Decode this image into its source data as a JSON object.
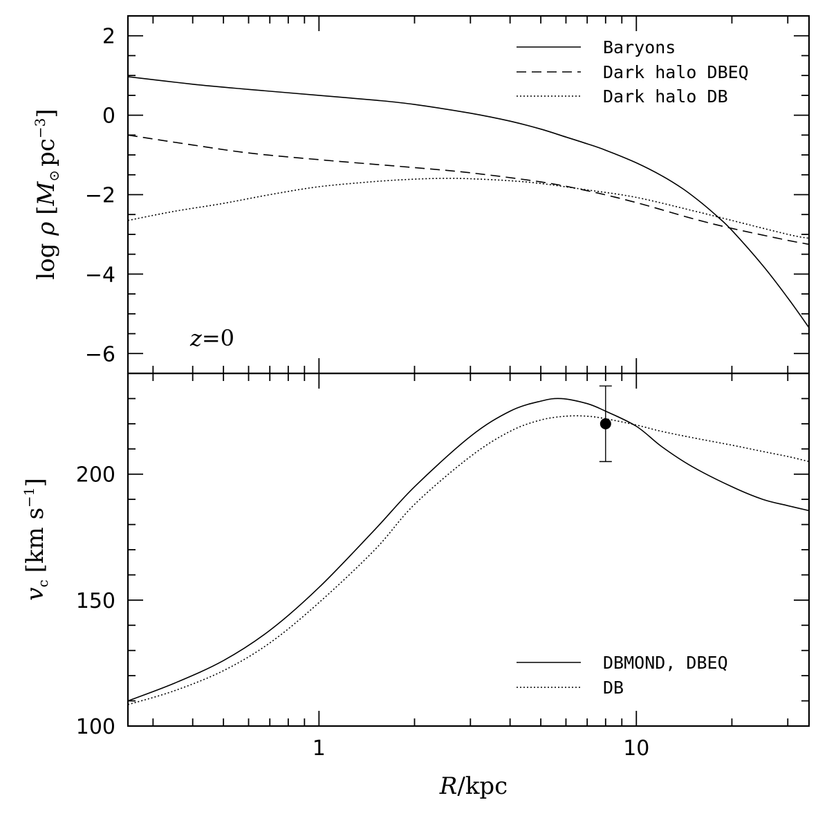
{
  "chart_data": [
    {
      "type": "line",
      "panel": "top",
      "xscale": "log",
      "xlim": [
        0.25,
        35
      ],
      "ylim": [
        -6.5,
        2.5
      ],
      "yticks": [
        -6,
        -4,
        -2,
        0,
        2
      ],
      "ytick_labels": [
        "−6",
        "−4",
        "−2",
        "0",
        "2"
      ],
      "ylabel": {
        "pre": "log ",
        "rho": "ρ",
        "open": "[",
        "M": "M",
        "sun": "⊙",
        "unit": "pc",
        "exp": "−3",
        "close": "]"
      },
      "annotation": {
        "z": "z",
        "eq": "=0"
      },
      "legend_position": "top-right",
      "grid": false,
      "series": [
        {
          "name": "Baryons",
          "style": "solid",
          "x": [
            0.25,
            0.4,
            0.6,
            1,
            1.5,
            2,
            3,
            4,
            5,
            6,
            7,
            8,
            10,
            12,
            14,
            16,
            18,
            20,
            25,
            30,
            35
          ],
          "y": [
            0.97,
            0.78,
            0.65,
            0.5,
            0.38,
            0.27,
            0.05,
            -0.15,
            -0.35,
            -0.55,
            -0.72,
            -0.88,
            -1.2,
            -1.52,
            -1.85,
            -2.2,
            -2.55,
            -2.9,
            -3.78,
            -4.6,
            -5.35
          ]
        },
        {
          "name": "Dark halo DBEQ",
          "style": "dashed",
          "x": [
            0.25,
            0.4,
            0.6,
            1,
            2,
            3,
            5,
            7,
            10,
            15,
            20,
            30,
            35
          ],
          "y": [
            -0.5,
            -0.75,
            -0.95,
            -1.12,
            -1.32,
            -1.45,
            -1.68,
            -1.9,
            -2.2,
            -2.6,
            -2.85,
            -3.15,
            -3.25
          ]
        },
        {
          "name": "Dark halo DB",
          "style": "dotted",
          "x": [
            0.25,
            0.35,
            0.5,
            0.7,
            1,
            1.5,
            2,
            2.5,
            3,
            4,
            5,
            7,
            10,
            15,
            20,
            30,
            35
          ],
          "y": [
            -2.65,
            -2.42,
            -2.22,
            -2.0,
            -1.8,
            -1.67,
            -1.61,
            -1.59,
            -1.6,
            -1.65,
            -1.72,
            -1.88,
            -2.07,
            -2.4,
            -2.65,
            -3.0,
            -3.1
          ]
        }
      ]
    },
    {
      "type": "line",
      "panel": "bottom",
      "xscale": "log",
      "xlim": [
        0.25,
        35
      ],
      "ylim": [
        100,
        240
      ],
      "yticks": [
        100,
        150,
        200
      ],
      "ytick_labels": [
        "100",
        "150",
        "200"
      ],
      "xticks": [
        1,
        10
      ],
      "xtick_labels": [
        "1",
        "10"
      ],
      "xlabel": {
        "R": "R",
        "unit": "/kpc"
      },
      "ylabel": {
        "v": "v",
        "sub": "c",
        "open": "[",
        "unit": "km s",
        "exp": "−1",
        "close": "]"
      },
      "legend_position": "bottom-right",
      "grid": false,
      "series": [
        {
          "name": "DBMOND, DBEQ",
          "style": "solid",
          "x": [
            0.25,
            0.35,
            0.5,
            0.7,
            1,
            1.5,
            2,
            3,
            4,
            5,
            5.8,
            7,
            8,
            10,
            12,
            15,
            20,
            25,
            30,
            35
          ],
          "y": [
            110,
            117,
            126,
            138,
            155,
            178,
            195,
            215,
            225,
            229,
            230,
            228,
            225,
            219,
            211,
            203,
            195,
            190,
            187.5,
            185.5
          ]
        },
        {
          "name": "DB",
          "style": "dotted",
          "x": [
            0.25,
            0.35,
            0.5,
            0.7,
            1,
            1.5,
            2,
            3,
            4,
            5,
            6,
            7,
            8,
            10,
            12,
            15,
            20,
            25,
            30,
            35
          ],
          "y": [
            108.5,
            114,
            122,
            133,
            149,
            170,
            188,
            207,
            217,
            221.5,
            223,
            223,
            222,
            219.5,
            217,
            214.5,
            211.5,
            209,
            207,
            205
          ]
        }
      ],
      "data_point": {
        "x": 8,
        "y": 220,
        "yerr_low": 15,
        "yerr_high": 15
      }
    }
  ]
}
